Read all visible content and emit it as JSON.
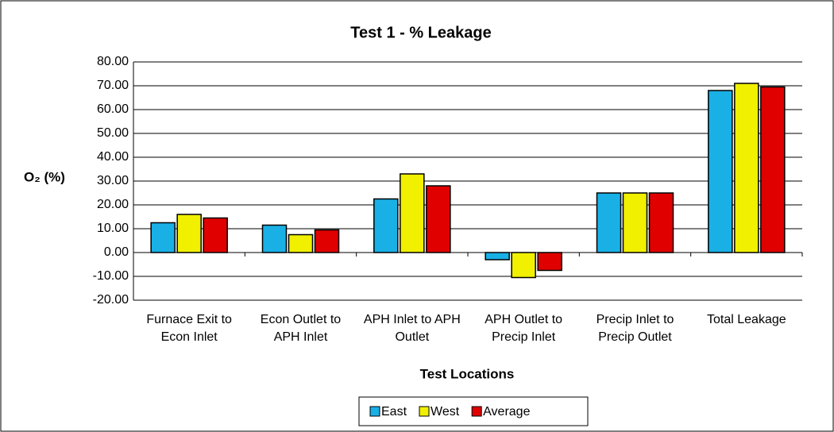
{
  "chart_data": {
    "type": "bar",
    "title": "Test 1 - % Leakage",
    "x_label": "Test Locations",
    "y_label": "O₂ (%)",
    "categories": [
      "Furnace Exit to Econ Inlet",
      "Econ Outlet to APH Inlet",
      "APH Inlet to APH Outlet",
      "APH Outlet to Precip Inlet",
      "Precip Inlet to Precip Outlet",
      "Total Leakage"
    ],
    "series": [
      {
        "name": "East",
        "color": "#19b0e6",
        "values": [
          12.5,
          11.5,
          22.5,
          -3,
          25,
          68
        ]
      },
      {
        "name": "West",
        "color": "#f0f000",
        "values": [
          16,
          7.5,
          33,
          -10.5,
          25,
          71
        ]
      },
      {
        "name": "Average",
        "color": "#e00000",
        "values": [
          14.5,
          9.5,
          28,
          -7.5,
          25,
          69.5
        ]
      }
    ],
    "ylim": [
      -20,
      80
    ],
    "yticks": [
      {
        "value": -20,
        "label": "-20.00"
      },
      {
        "value": -10,
        "label": "-10.00"
      },
      {
        "value": 0,
        "label": "0.00"
      },
      {
        "value": 10,
        "label": "10.00"
      },
      {
        "value": 20,
        "label": "20.00"
      },
      {
        "value": 30,
        "label": "30.00"
      },
      {
        "value": 40,
        "label": "40.00"
      },
      {
        "value": 50,
        "label": "50.00"
      },
      {
        "value": 60,
        "label": "60.00"
      },
      {
        "value": 70,
        "label": "70.00"
      },
      {
        "value": 80,
        "label": "80.00"
      }
    ],
    "grid": true,
    "legend": "bottom"
  }
}
